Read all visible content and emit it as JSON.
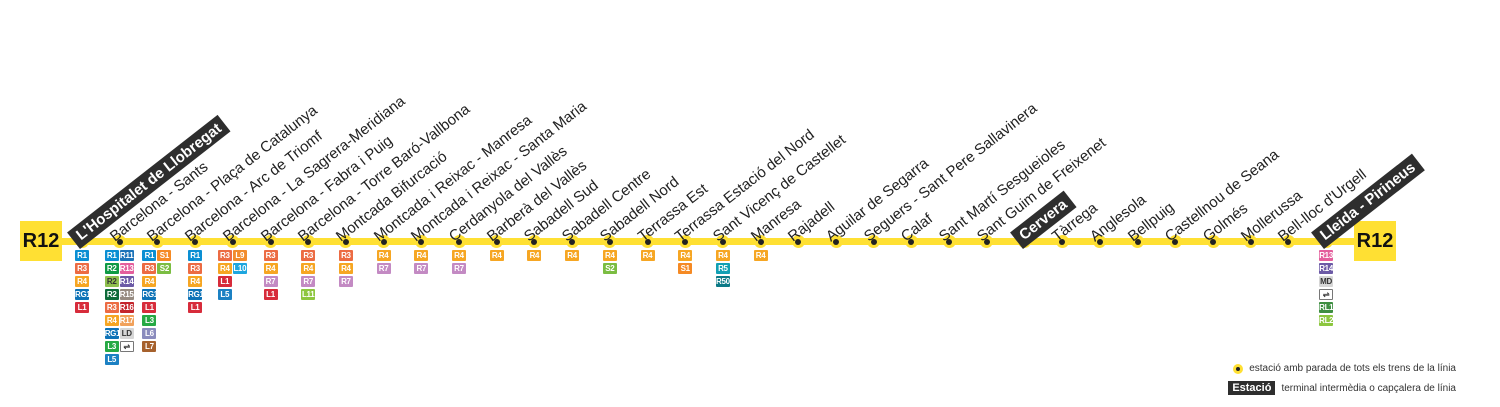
{
  "line": {
    "name": "R12",
    "color": "#ffe033"
  },
  "stations": [
    {
      "name": "L'Hospitalet de Llobregat",
      "terminal": true,
      "connections": [
        [
          "R1",
          "R3",
          "R4",
          "RG1",
          "L1"
        ]
      ]
    },
    {
      "name": "Barcelona - Sants",
      "terminal": false,
      "connections": [
        [
          "R1",
          "R2",
          "R2 Nord",
          "R2 Sud",
          "R3",
          "R4",
          "RG1",
          "L3",
          "L5"
        ],
        [
          "R11",
          "R13",
          "R14",
          "R15",
          "R16",
          "R17",
          "LD",
          "train-icon"
        ]
      ]
    },
    {
      "name": "Barcelona - Plaça de Catalunya",
      "terminal": false,
      "connections": [
        [
          "R1",
          "R3",
          "R4",
          "RG1",
          "L1",
          "L3",
          "L6",
          "L7"
        ],
        [
          "S1",
          "S2"
        ]
      ]
    },
    {
      "name": "Barcelona - Arc de Triomf",
      "terminal": false,
      "connections": [
        [
          "R1",
          "R3",
          "R4",
          "RG1",
          "L1"
        ]
      ]
    },
    {
      "name": "Barcelona - La Sagrera-Meridiana",
      "terminal": false,
      "connections": [
        [
          "R3",
          "R4",
          "L1",
          "L5"
        ],
        [
          "L9",
          "L10"
        ]
      ]
    },
    {
      "name": "Barcelona - Fabra i Puig",
      "terminal": false,
      "connections": [
        [
          "R3",
          "R4",
          "R7",
          "L1"
        ]
      ]
    },
    {
      "name": "Barcelona - Torre Baró-Vallbona",
      "terminal": false,
      "connections": [
        [
          "R3",
          "R4",
          "R7",
          "L11"
        ]
      ]
    },
    {
      "name": "Montcada Bifurcació",
      "terminal": false,
      "connections": [
        [
          "R3",
          "R4",
          "R7"
        ]
      ]
    },
    {
      "name": "Montcada i Reixac - Manresa",
      "terminal": false,
      "connections": [
        [
          "R4",
          "R7"
        ]
      ]
    },
    {
      "name": "Montcada i Reixac - Santa Maria",
      "terminal": false,
      "connections": [
        [
          "R4",
          "R7"
        ]
      ]
    },
    {
      "name": "Cerdanyola del Vallès",
      "terminal": false,
      "connections": [
        [
          "R4",
          "R7"
        ]
      ]
    },
    {
      "name": "Barberà del Vallès",
      "terminal": false,
      "connections": [
        [
          "R4"
        ]
      ]
    },
    {
      "name": "Sabadell Sud",
      "terminal": false,
      "connections": [
        [
          "R4"
        ]
      ]
    },
    {
      "name": "Sabadell Centre",
      "terminal": false,
      "connections": [
        [
          "R4"
        ]
      ]
    },
    {
      "name": "Sabadell Nord",
      "terminal": false,
      "connections": [
        [
          "R4",
          "S2"
        ]
      ]
    },
    {
      "name": "Terrassa Est",
      "terminal": false,
      "connections": [
        [
          "R4"
        ]
      ]
    },
    {
      "name": "Terrassa Estació del Nord",
      "terminal": false,
      "connections": [
        [
          "R4",
          "S1"
        ]
      ]
    },
    {
      "name": "Sant Vicenç de Castellet",
      "terminal": false,
      "connections": [
        [
          "R4",
          "R5",
          "R50"
        ]
      ]
    },
    {
      "name": "Manresa",
      "terminal": false,
      "connections": [
        [
          "R4"
        ]
      ]
    },
    {
      "name": "Rajadell",
      "terminal": false,
      "connections": []
    },
    {
      "name": "Aguilar de Segarra",
      "terminal": false,
      "connections": []
    },
    {
      "name": "Seguers - Sant Pere Sallavinera",
      "terminal": false,
      "connections": []
    },
    {
      "name": "Calaf",
      "terminal": false,
      "connections": []
    },
    {
      "name": "Sant Martí Sesgueioles",
      "terminal": false,
      "connections": []
    },
    {
      "name": "Sant Guim de Freixenet",
      "terminal": false,
      "connections": []
    },
    {
      "name": "Cervera",
      "terminal": true,
      "connections": []
    },
    {
      "name": "Tàrrega",
      "terminal": false,
      "connections": []
    },
    {
      "name": "Anglesola",
      "terminal": false,
      "connections": []
    },
    {
      "name": "Bellpuig",
      "terminal": false,
      "connections": []
    },
    {
      "name": "Castellnou de Seana",
      "terminal": false,
      "connections": []
    },
    {
      "name": "Golmés",
      "terminal": false,
      "connections": []
    },
    {
      "name": "Mollerussa",
      "terminal": false,
      "connections": []
    },
    {
      "name": "Bell-lloc d'Urgell",
      "terminal": false,
      "connections": []
    },
    {
      "name": "Lleida - Pirineus",
      "terminal": true,
      "connections": [
        [
          "R13",
          "R14",
          "MD",
          "train-icon",
          "RL1",
          "RL2"
        ]
      ]
    }
  ],
  "line_colors": {
    "R1": "#0b8fd3",
    "R2": "#0f9a45",
    "R2 Nord": "#8fc04e",
    "R2 Sud": "#0e6b39",
    "R3": "#ec6b43",
    "R4": "#f6a623",
    "R5": "#11a0b4",
    "R50": "#0c7a87",
    "R7": "#c38ac3",
    "R11": "#1c73b9",
    "R13": "#e45e9c",
    "R14": "#6c5aa6",
    "R15": "#978b81",
    "R16": "#c4242c",
    "R17": "#f1a15b",
    "RG1": "#0e73b7",
    "L1": "#d72c3b",
    "L3": "#26a944",
    "L5": "#1c81c3",
    "L6": "#8a8bbd",
    "L7": "#a6612d",
    "L9": "#f28c2c",
    "L10": "#1da6df",
    "L11": "#8ec63f",
    "S1": "#f58a24",
    "S2": "#7bbd42",
    "LD": "#d6d6d6",
    "MD": "#d6d6d6",
    "RL1": "#3e8e41",
    "RL2": "#8cc63f"
  },
  "short_labels": {
    "R2 Nord": "R2",
    "R2 Sud": "R2",
    "train-icon": "⇌"
  },
  "legend": {
    "stop_text": "estació amb parada de tots els trens de la línia",
    "terminal_sample": "Estació",
    "terminal_text": "terminal intermèdia o capçalera de línia"
  }
}
